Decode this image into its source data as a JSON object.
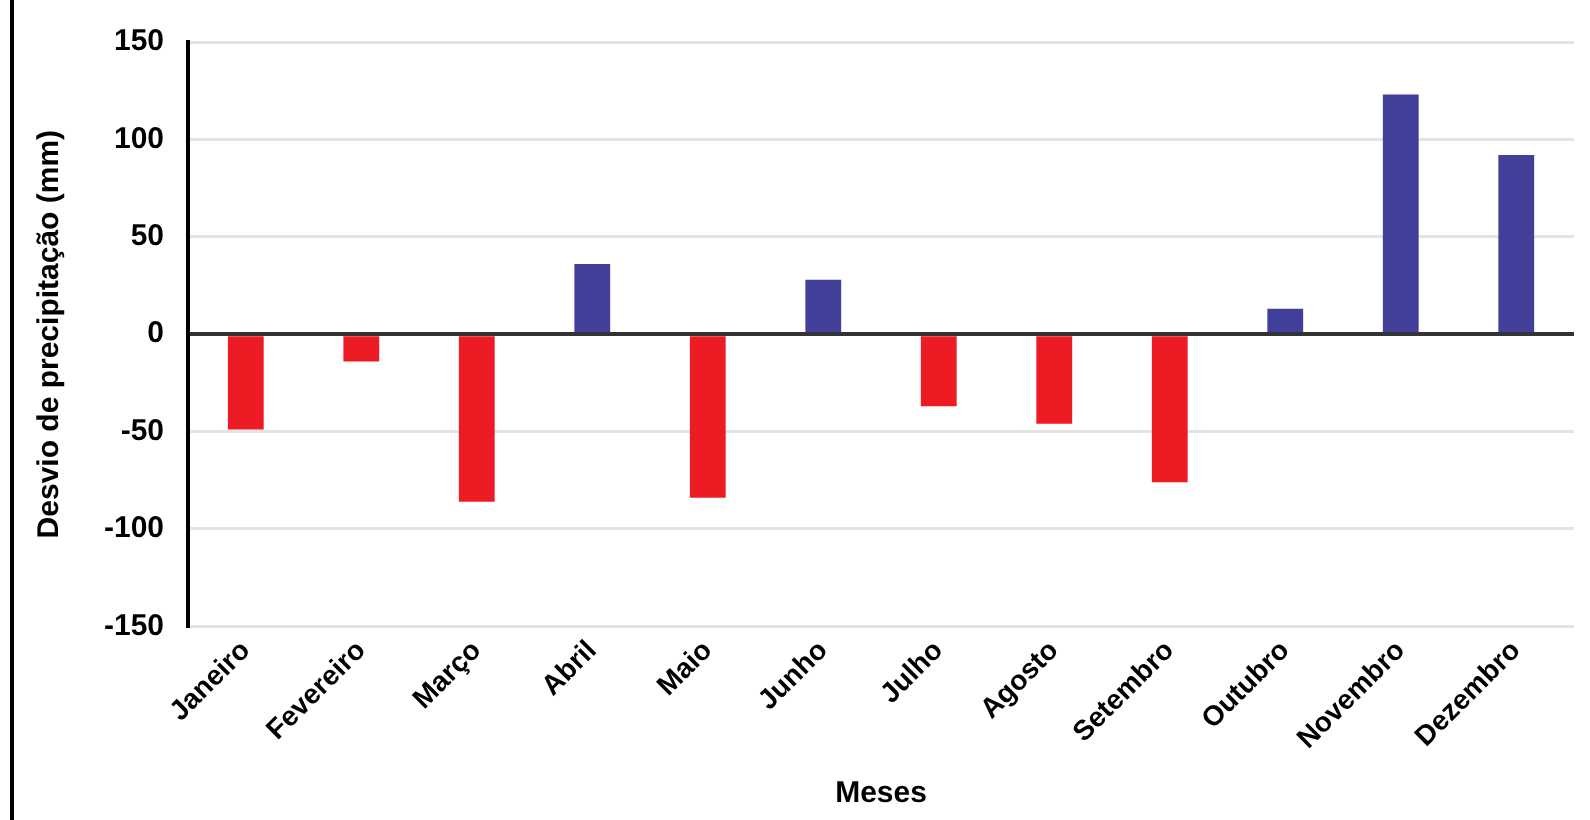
{
  "chart_data": {
    "type": "bar",
    "xlabel": "Meses",
    "ylabel": "Desvio de precipitação (mm)",
    "categories": [
      "Janeiro",
      "Fevereiro",
      "Março",
      "Abril",
      "Maio",
      "Junho",
      "Julho",
      "Agosto",
      "Setembro",
      "Outubro",
      "Novembro",
      "Dezembro"
    ],
    "values": [
      -49,
      -14,
      -86,
      36,
      -84,
      28,
      -37,
      -46,
      -76,
      13,
      123,
      92
    ],
    "colors": [
      "#ed1c24",
      "#ed1c24",
      "#ed1c24",
      "#413f98",
      "#ed1c24",
      "#413f98",
      "#ed1c24",
      "#ed1c24",
      "#ed1c24",
      "#413f98",
      "#413f98",
      "#413f98"
    ],
    "ylim": [
      -150,
      150
    ],
    "yticks": [
      -150,
      -100,
      -50,
      0,
      50,
      100,
      150
    ],
    "grid": "y"
  }
}
